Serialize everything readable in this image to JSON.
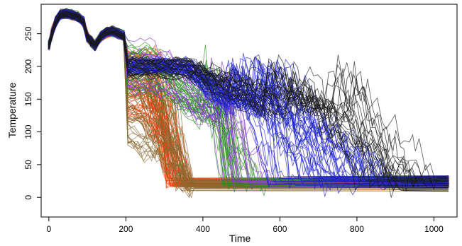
{
  "chart_data": {
    "type": "line",
    "title": "",
    "xlabel": "Time",
    "ylabel": "Temperature",
    "xlim": [
      -20,
      1060
    ],
    "ylim": [
      -30,
      295
    ],
    "x_ticks": [
      0,
      200,
      400,
      600,
      800,
      1000
    ],
    "y_ticks": [
      0,
      50,
      100,
      150,
      200,
      250
    ],
    "grid": false,
    "legend": "none",
    "series_groups": [
      {
        "color": "#f03c00",
        "count": 55,
        "phases": [
          [
            230,
            300
          ],
          [
            230,
            320
          ],
          [
            300,
            370
          ]
        ],
        "peak_range": [
          120,
          230
        ],
        "floor_range": [
          15,
          30
        ],
        "end_range": [
          1035,
          1040
        ]
      },
      {
        "color": "#8a6a32",
        "count": 45,
        "phases": [
          [
            200,
            260
          ],
          [
            240,
            330
          ],
          [
            330,
            380
          ]
        ],
        "peak_range": [
          80,
          210
        ],
        "floor_range": [
          10,
          28
        ],
        "end_range": [
          1035,
          1040
        ]
      },
      {
        "color": "#2a8c1e",
        "count": 35,
        "phases": [
          [
            240,
            300
          ],
          [
            380,
            470
          ],
          [
            420,
            560
          ]
        ],
        "peak_range": [
          150,
          235
        ],
        "floor_range": [
          15,
          30
        ],
        "end_range": [
          1035,
          1040
        ]
      },
      {
        "color": "#8a3ad0",
        "count": 20,
        "phases": [
          [
            260,
            320
          ],
          [
            390,
            480
          ],
          [
            440,
            600
          ]
        ],
        "peak_range": [
          160,
          240
        ],
        "floor_range": [
          15,
          30
        ],
        "end_range": [
          1035,
          1040
        ]
      },
      {
        "color": "#1d22c8",
        "count": 50,
        "phases": [
          [
            350,
            360
          ],
          [
            450,
            620
          ],
          [
            560,
            900
          ]
        ],
        "peak_range": [
          190,
          210
        ],
        "floor_range": [
          15,
          32
        ],
        "end_range": [
          1035,
          1040
        ]
      },
      {
        "color": "#1a1a1a",
        "count": 25,
        "phases": [
          [
            355,
            365
          ],
          [
            500,
            800
          ],
          [
            800,
            1040
          ]
        ],
        "peak_range": [
          185,
          210
        ],
        "floor_range": [
          10,
          35
        ],
        "end_range": [
          1035,
          1040
        ]
      }
    ]
  }
}
